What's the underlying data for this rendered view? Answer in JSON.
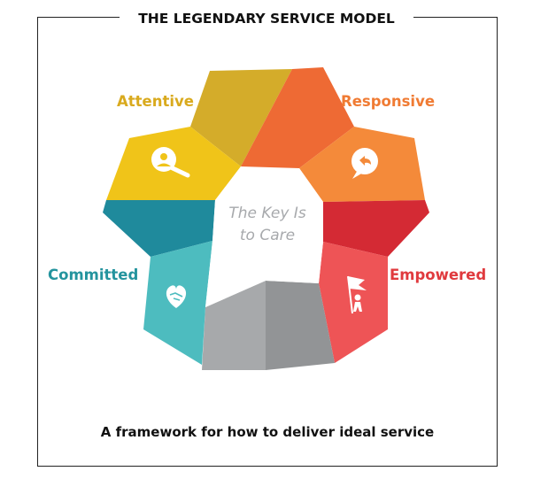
{
  "title": "THE LEGENDARY SERVICE MODEL",
  "center": {
    "line1": "The Key Is",
    "line2": "to Care"
  },
  "segments": [
    {
      "label": "Attentive",
      "color": "#d9aa1e",
      "icon": "search-person-icon"
    },
    {
      "label": "Responsive",
      "color": "#f07b33",
      "icon": "chat-reply-icon"
    },
    {
      "label": "Empowered",
      "color": "#e03a3e",
      "icon": "flag-person-icon"
    },
    {
      "label": "Committed",
      "color": "#24949e",
      "icon": "heart-handshake-icon"
    }
  ],
  "caption": "A framework for how to deliver ideal service"
}
